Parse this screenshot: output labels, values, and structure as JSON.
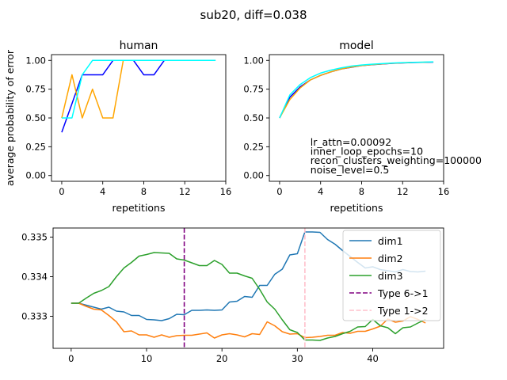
{
  "figure": {
    "title": "sub20, diff=0.038"
  },
  "chart_data": [
    {
      "type": "line",
      "title": "human",
      "xlabel": "repetitions",
      "ylabel": "average probability of error",
      "xlim": [
        -1,
        16
      ],
      "ylim": [
        -0.05,
        1.05
      ],
      "xticks": [
        0,
        4,
        8,
        12,
        16
      ],
      "yticks": [
        "0.00",
        "0.25",
        "0.50",
        "0.75",
        "1.00"
      ],
      "series": [
        {
          "color": "#0000ff",
          "x": [
            0,
            1,
            2,
            3,
            4,
            5,
            6,
            7,
            8,
            9,
            10,
            11,
            12,
            13,
            14,
            15
          ],
          "values": [
            0.375,
            0.625,
            0.875,
            0.875,
            0.875,
            1.0,
            1.0,
            1.0,
            0.875,
            0.875,
            1.0,
            1.0,
            1.0,
            1.0,
            1.0,
            1.0
          ]
        },
        {
          "color": "#ffa500",
          "x": [
            0,
            1,
            2,
            3,
            4,
            5,
            6,
            7,
            8,
            9,
            10,
            11,
            12,
            13,
            14,
            15
          ],
          "values": [
            0.5,
            0.875,
            0.5,
            0.75,
            0.5,
            0.5,
            1.0,
            1.0,
            1.0,
            1.0,
            1.0,
            1.0,
            1.0,
            1.0,
            1.0,
            1.0
          ]
        },
        {
          "color": "#00ffff",
          "x": [
            0,
            1,
            2,
            3,
            4,
            5,
            6,
            7,
            8,
            9,
            10,
            11,
            12,
            13,
            14,
            15
          ],
          "values": [
            0.5,
            0.5,
            0.875,
            1.0,
            1.0,
            1.0,
            1.0,
            1.0,
            1.0,
            1.0,
            1.0,
            1.0,
            1.0,
            1.0,
            1.0,
            1.0
          ]
        }
      ]
    },
    {
      "type": "line",
      "title": "model",
      "xlabel": "repetitions",
      "xlim": [
        -1,
        16
      ],
      "ylim": [
        -0.05,
        1.05
      ],
      "xticks": [
        0,
        4,
        8,
        12,
        16
      ],
      "yticks": [
        "0.00",
        "0.25",
        "0.50",
        "0.75",
        "1.00"
      ],
      "annotations": [
        "lr_attn=0.00092",
        "inner_loop_epochs=10",
        "recon_clusters_weighting=100000",
        "noise_level=0.5"
      ],
      "series": [
        {
          "color": "#0000ff",
          "x": [
            0,
            1,
            2,
            3,
            4,
            5,
            6,
            7,
            8,
            9,
            10,
            11,
            12,
            13,
            14,
            15
          ],
          "values": [
            0.5,
            0.68,
            0.77,
            0.83,
            0.87,
            0.9,
            0.925,
            0.94,
            0.955,
            0.962,
            0.968,
            0.974,
            0.978,
            0.981,
            0.983,
            0.985
          ]
        },
        {
          "color": "#ffa500",
          "x": [
            0,
            1,
            2,
            3,
            4,
            5,
            6,
            7,
            8,
            9,
            10,
            11,
            12,
            13,
            14,
            15
          ],
          "values": [
            0.5,
            0.66,
            0.76,
            0.83,
            0.87,
            0.9,
            0.925,
            0.942,
            0.955,
            0.963,
            0.969,
            0.975,
            0.979,
            0.982,
            0.984,
            0.986
          ]
        },
        {
          "color": "#00ffff",
          "x": [
            0,
            1,
            2,
            3,
            4,
            5,
            6,
            7,
            8,
            9,
            10,
            11,
            12,
            13,
            14,
            15
          ],
          "values": [
            0.5,
            0.7,
            0.79,
            0.85,
            0.89,
            0.915,
            0.935,
            0.95,
            0.96,
            0.967,
            0.972,
            0.977,
            0.98,
            0.983,
            0.985,
            0.987
          ]
        }
      ]
    },
    {
      "type": "line",
      "xlim": [
        -2.4,
        49.4
      ],
      "ylim": [
        0.33219,
        0.33523
      ],
      "xticks": [
        0,
        10,
        20,
        30,
        40
      ],
      "yticks": [
        0.333,
        0.334,
        0.335
      ],
      "legend": "top-right",
      "series": [
        {
          "name": "dim1",
          "color": "#1f77b4",
          "values": [
            0.33333,
            0.33333,
            0.33328,
            0.33323,
            0.33318,
            0.33323,
            0.33313,
            0.33311,
            0.33302,
            0.33302,
            0.33292,
            0.33291,
            0.33289,
            0.33294,
            0.33305,
            0.33304,
            0.33315,
            0.33315,
            0.33316,
            0.33315,
            0.33316,
            0.33336,
            0.33338,
            0.3335,
            0.33348,
            0.33378,
            0.33378,
            0.33406,
            0.33419,
            0.33455,
            0.33458,
            0.33513,
            0.33513,
            0.33512,
            0.33494,
            0.33482,
            0.33466,
            0.33451,
            0.33436,
            0.33422,
            0.33425,
            0.33418,
            0.33415,
            0.33412,
            0.33418,
            0.33413,
            0.33412,
            0.33414
          ]
        },
        {
          "name": "dim2",
          "color": "#ff7f0e",
          "values": [
            0.33333,
            0.33333,
            0.33325,
            0.33318,
            0.33316,
            0.33302,
            0.33286,
            0.33261,
            0.33263,
            0.33253,
            0.33253,
            0.33247,
            0.33253,
            0.33247,
            0.33251,
            0.33252,
            0.33252,
            0.33255,
            0.33258,
            0.33245,
            0.33253,
            0.33256,
            0.33253,
            0.33248,
            0.33256,
            0.33254,
            0.33286,
            0.33276,
            0.33261,
            0.33255,
            0.33256,
            0.33246,
            0.33247,
            0.33249,
            0.33252,
            0.33252,
            0.33259,
            0.33257,
            0.33262,
            0.33262,
            0.33268,
            0.33275,
            0.33293,
            0.33285,
            0.33288,
            0.33299,
            0.33292,
            0.33283
          ]
        },
        {
          "name": "dim3",
          "color": "#2ca02c",
          "values": [
            0.33333,
            0.33333,
            0.33346,
            0.33358,
            0.33365,
            0.33375,
            0.334,
            0.33422,
            0.33436,
            0.33452,
            0.33456,
            0.33461,
            0.3346,
            0.33459,
            0.33445,
            0.33442,
            0.33435,
            0.33428,
            0.33428,
            0.33441,
            0.33431,
            0.33409,
            0.33409,
            0.33402,
            0.33396,
            0.33368,
            0.33336,
            0.33318,
            0.33291,
            0.33266,
            0.33259,
            0.3324,
            0.3324,
            0.33239,
            0.33245,
            0.33249,
            0.33256,
            0.33262,
            0.33273,
            0.33274,
            0.33292,
            0.33276,
            0.33271,
            0.33256,
            0.33271,
            0.33273,
            0.33283,
            0.33292
          ]
        }
      ],
      "vlines": [
        {
          "name": "Type 6->1",
          "x": 15,
          "color": "#800080",
          "dash": "dashed"
        },
        {
          "name": "Type 1->2",
          "x": 31,
          "color": "#ffc0cb",
          "dash": "dashed"
        }
      ]
    }
  ]
}
